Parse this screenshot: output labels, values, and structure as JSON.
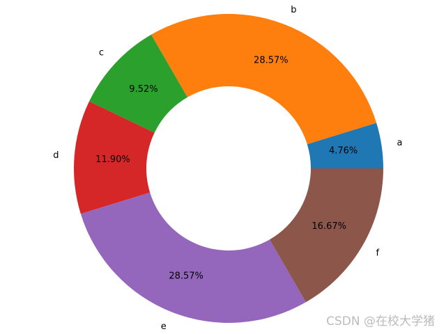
{
  "chart_data": {
    "type": "donut",
    "categories": [
      "a",
      "b",
      "c",
      "d",
      "e",
      "f"
    ],
    "values": [
      4.76,
      28.57,
      9.52,
      11.9,
      28.57,
      16.67
    ],
    "value_labels": [
      "4.76%",
      "28.57%",
      "9.52%",
      "11.90%",
      "28.57%",
      "16.67%"
    ],
    "colors": [
      "#1f77b4",
      "#ff7f0e",
      "#2ca02c",
      "#d62728",
      "#9467bd",
      "#8c564b"
    ],
    "watermark": "CSDN @在校大学猪"
  }
}
